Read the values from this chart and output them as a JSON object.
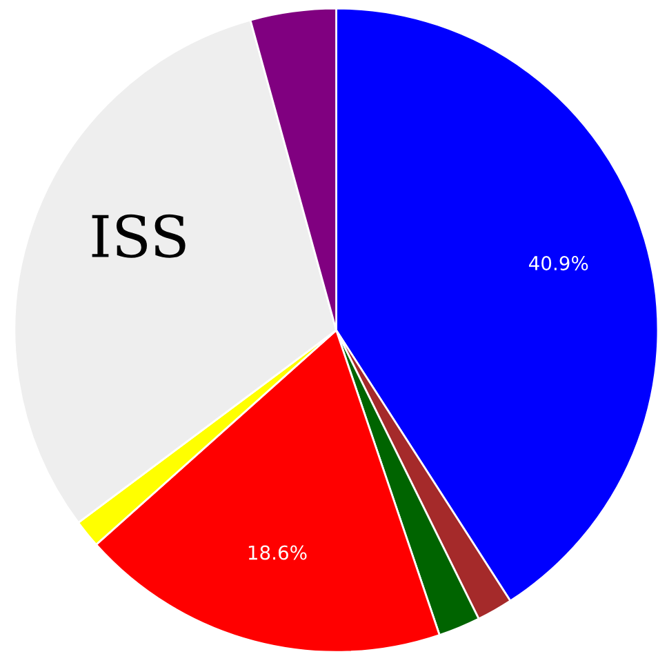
{
  "chart_data": {
    "type": "pie",
    "categories": [
      null,
      null,
      null,
      null,
      null,
      "ISS",
      null
    ],
    "values": [
      40.9,
      1.8,
      2.1,
      18.6,
      1.4,
      30.9,
      4.3
    ],
    "colors": [
      "#0000ff",
      "#a52a2a",
      "#006400",
      "#ff0000",
      "#ffff00",
      "#eeeeee",
      "#800080"
    ],
    "value_labels": [
      "40.9%",
      null,
      null,
      "18.6%",
      null,
      null,
      null
    ]
  }
}
